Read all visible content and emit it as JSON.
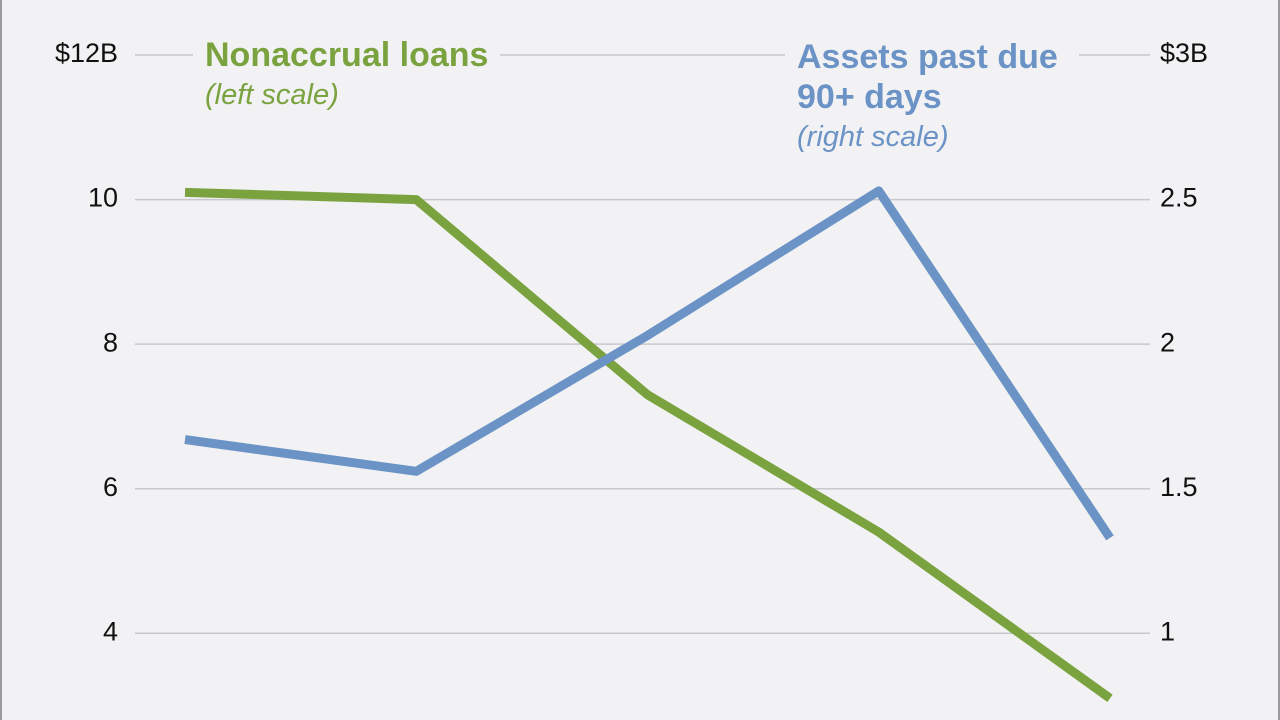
{
  "chart_data": {
    "type": "line",
    "x": [
      null,
      null,
      null,
      null,
      null
    ],
    "series": [
      {
        "name": "Nonaccrual loans",
        "note": "(left scale)",
        "color": "#7aa23f",
        "values": [
          10.1,
          10.0,
          7.3,
          5.4,
          3.1
        ]
      },
      {
        "name": "Assets past due 90+ days",
        "note": "(right scale)",
        "color": "#6b93c6",
        "axis": "y2",
        "values": [
          1.67,
          1.56,
          2.03,
          2.53,
          1.33
        ]
      }
    ],
    "ylim": [
      2.8,
      12
    ],
    "yticks": [
      {
        "value": 12,
        "label": "$12B"
      },
      10,
      8,
      6,
      4
    ],
    "y2lim": [
      0.7,
      3
    ],
    "y2ticks": [
      {
        "value": 3,
        "label": "$3B"
      },
      2.5,
      2,
      1.5,
      1
    ],
    "grid": true
  }
}
